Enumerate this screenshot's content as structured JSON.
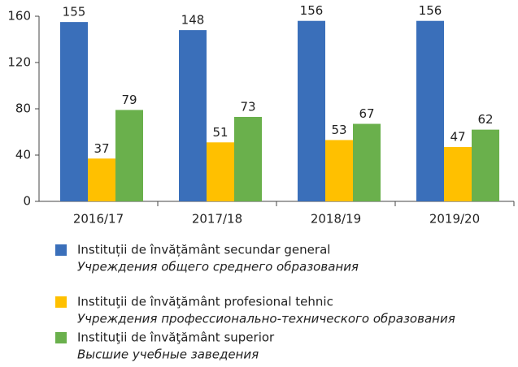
{
  "chart_data": {
    "type": "bar",
    "categories": [
      "2016/17",
      "2017/18",
      "2018/19",
      "2019/20"
    ],
    "series": [
      {
        "name": "Instituții de învățământ secundar general",
        "name_ru": "Учреждения общего среднего образования",
        "color": "#3a6fba",
        "values": [
          155,
          148,
          156,
          156
        ]
      },
      {
        "name": "Instituţii de învăţământ profesional tehnic",
        "name_ru": "Учреждения профессионально-технического образования",
        "color": "#ffc000",
        "values": [
          37,
          51,
          53,
          47
        ]
      },
      {
        "name": "Instituţii de învăţământ superior",
        "name_ru": "Высшие учебные заведения",
        "color": "#6ab04c",
        "values": [
          79,
          73,
          67,
          62
        ]
      }
    ],
    "ylim": [
      0,
      160
    ],
    "yticks": [
      0,
      40,
      80,
      120,
      160
    ],
    "grid": false
  }
}
